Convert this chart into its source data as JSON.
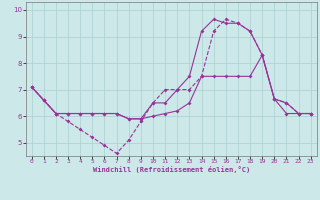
{
  "xlabel": "Windchill (Refroidissement éolien,°C)",
  "background_color": "#cce8e8",
  "grid_color": "#aacfcf",
  "line_color": "#993399",
  "xlim": [
    -0.5,
    23.5
  ],
  "ylim": [
    4.5,
    10.3
  ],
  "xticks": [
    0,
    1,
    2,
    3,
    4,
    5,
    6,
    7,
    8,
    9,
    10,
    11,
    12,
    13,
    14,
    15,
    16,
    17,
    18,
    19,
    20,
    21,
    22,
    23
  ],
  "yticks": [
    5,
    6,
    7,
    8,
    9,
    10
  ],
  "line1_x": [
    0,
    1,
    2,
    3,
    4,
    5,
    6,
    7,
    8,
    9,
    10,
    11,
    12,
    13,
    14,
    15,
    16,
    17,
    18,
    19,
    20,
    21,
    22,
    23
  ],
  "line1_y": [
    7.1,
    6.6,
    6.1,
    5.8,
    5.5,
    5.2,
    4.9,
    4.6,
    5.1,
    5.8,
    6.5,
    7.0,
    7.0,
    7.0,
    7.5,
    9.2,
    9.65,
    9.5,
    9.2,
    8.3,
    6.65,
    6.5,
    6.1,
    6.1
  ],
  "line2_x": [
    0,
    1,
    2,
    3,
    4,
    5,
    6,
    7,
    8,
    9,
    10,
    11,
    12,
    13,
    14,
    15,
    16,
    17,
    18,
    19,
    20,
    21,
    22,
    23
  ],
  "line2_y": [
    7.1,
    6.6,
    6.1,
    6.1,
    6.1,
    6.1,
    6.1,
    6.1,
    5.9,
    5.9,
    6.0,
    6.1,
    6.2,
    6.5,
    7.5,
    7.5,
    7.5,
    7.5,
    7.5,
    8.3,
    6.65,
    6.1,
    6.1,
    6.1
  ],
  "line3_x": [
    0,
    1,
    2,
    3,
    4,
    5,
    6,
    7,
    8,
    9,
    10,
    11,
    12,
    13,
    14,
    15,
    16,
    17,
    18,
    19,
    20,
    21,
    22,
    23
  ],
  "line3_y": [
    7.1,
    6.6,
    6.1,
    6.1,
    6.1,
    6.1,
    6.1,
    6.1,
    5.9,
    5.9,
    6.5,
    6.5,
    7.0,
    7.5,
    9.2,
    9.65,
    9.5,
    9.5,
    9.2,
    8.3,
    6.65,
    6.5,
    6.1,
    6.1
  ]
}
